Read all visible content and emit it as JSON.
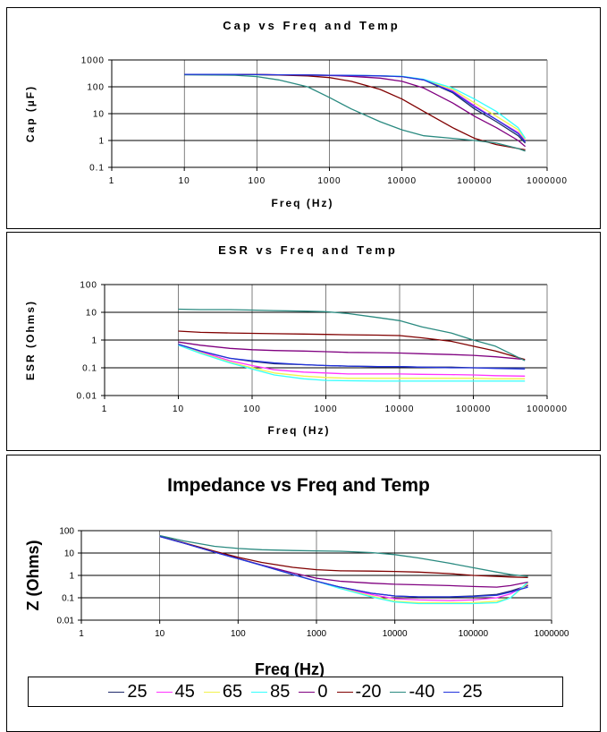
{
  "series_style": [
    {
      "name": "25",
      "color": "#1f2a6b"
    },
    {
      "name": "45",
      "color": "#ff33ff"
    },
    {
      "name": "65",
      "color": "#f2f24d"
    },
    {
      "name": "85",
      "color": "#33ffff"
    },
    {
      "name": "0",
      "color": "#800080"
    },
    {
      "name": "-20",
      "color": "#800000"
    },
    {
      "name": "-40",
      "color": "#2a8a80"
    },
    {
      "name": "25",
      "color": "#2233dd"
    }
  ],
  "chart_data": [
    {
      "type": "line",
      "title": "Cap vs Freq and Temp",
      "xlabel": "Freq (Hz)",
      "ylabel": "Cap (µF)",
      "xscale": "log",
      "yscale": "log",
      "xlim": [
        1,
        1000000
      ],
      "ylim": [
        0.1,
        1000
      ],
      "xticks": [
        "1",
        "10",
        "100",
        "1000",
        "10000",
        "100000",
        "1000000"
      ],
      "yticks": [
        "0.1",
        "1",
        "10",
        "100",
        "1000"
      ],
      "grid": "horizontal",
      "x": [
        10,
        50,
        100,
        200,
        500,
        1000,
        2000,
        5000,
        10000,
        20000,
        50000,
        100000,
        200000,
        400000,
        500000
      ],
      "series": [
        {
          "name": "25",
          "values": [
            290,
            290,
            285,
            280,
            275,
            270,
            265,
            255,
            240,
            180,
            60,
            15,
            5,
            1.5,
            0.8
          ]
        },
        {
          "name": "45",
          "values": [
            290,
            290,
            285,
            280,
            275,
            270,
            265,
            255,
            240,
            180,
            70,
            20,
            6,
            2,
            1
          ]
        },
        {
          "name": "65",
          "values": [
            285,
            285,
            280,
            280,
            275,
            270,
            265,
            255,
            240,
            185,
            80,
            25,
            8,
            2.5,
            1.1
          ]
        },
        {
          "name": "85",
          "values": [
            285,
            285,
            280,
            278,
            275,
            270,
            268,
            260,
            245,
            190,
            90,
            35,
            12,
            3,
            1.2
          ]
        },
        {
          "name": "0",
          "values": [
            290,
            290,
            285,
            280,
            275,
            265,
            245,
            210,
            160,
            90,
            25,
            8,
            3,
            1,
            0.6
          ]
        },
        {
          "name": "-20",
          "values": [
            290,
            288,
            285,
            275,
            255,
            220,
            160,
            80,
            35,
            12,
            3,
            1.2,
            0.7,
            0.5,
            0.45
          ]
        },
        {
          "name": "-40",
          "values": [
            280,
            270,
            240,
            180,
            100,
            40,
            15,
            5,
            2.5,
            1.5,
            1.2,
            1,
            0.8,
            0.5,
            0.4
          ]
        },
        {
          "name": "25",
          "values": [
            290,
            290,
            285,
            280,
            275,
            270,
            265,
            255,
            240,
            180,
            65,
            18,
            6,
            1.8,
            0.9
          ]
        }
      ]
    },
    {
      "type": "line",
      "title": "ESR vs Freq and Temp",
      "xlabel": "Freq (Hz)",
      "ylabel": "ESR (Ohms)",
      "xscale": "log",
      "yscale": "log",
      "xlim": [
        1,
        1000000
      ],
      "ylim": [
        0.01,
        100
      ],
      "xticks": [
        "1",
        "10",
        "100",
        "1000",
        "10000",
        "100000",
        "1000000"
      ],
      "yticks": [
        "0.01",
        "0.1",
        "1",
        "10",
        "100"
      ],
      "grid": "horizontal",
      "x": [
        10,
        20,
        50,
        100,
        200,
        500,
        1000,
        2000,
        5000,
        10000,
        20000,
        50000,
        100000,
        200000,
        500000
      ],
      "series": [
        {
          "name": "25",
          "values": [
            0.7,
            0.4,
            0.22,
            0.17,
            0.14,
            0.13,
            0.12,
            0.115,
            0.11,
            0.11,
            0.105,
            0.105,
            0.1,
            0.1,
            0.1
          ]
        },
        {
          "name": "45",
          "values": [
            0.7,
            0.38,
            0.18,
            0.12,
            0.085,
            0.07,
            0.065,
            0.06,
            0.06,
            0.06,
            0.058,
            0.057,
            0.055,
            0.052,
            0.05
          ]
        },
        {
          "name": "65",
          "values": [
            0.65,
            0.35,
            0.16,
            0.1,
            0.065,
            0.05,
            0.045,
            0.042,
            0.042,
            0.042,
            0.042,
            0.042,
            0.042,
            0.04,
            0.04
          ]
        },
        {
          "name": "85",
          "values": [
            0.65,
            0.33,
            0.15,
            0.09,
            0.055,
            0.04,
            0.035,
            0.034,
            0.033,
            0.033,
            0.033,
            0.033,
            0.033,
            0.033,
            0.033
          ]
        },
        {
          "name": "0",
          "values": [
            0.85,
            0.65,
            0.5,
            0.45,
            0.42,
            0.4,
            0.38,
            0.36,
            0.35,
            0.34,
            0.32,
            0.3,
            0.28,
            0.25,
            0.2
          ]
        },
        {
          "name": "-20",
          "values": [
            2.1,
            1.9,
            1.8,
            1.75,
            1.7,
            1.65,
            1.6,
            1.55,
            1.5,
            1.45,
            1.2,
            0.9,
            0.6,
            0.4,
            0.2
          ]
        },
        {
          "name": "-40",
          "values": [
            13,
            12.5,
            12.5,
            12,
            11.5,
            11,
            10.5,
            9,
            6.5,
            5,
            3,
            1.8,
            1,
            0.6,
            0.18
          ]
        },
        {
          "name": "25",
          "values": [
            0.7,
            0.4,
            0.22,
            0.18,
            0.15,
            0.13,
            0.12,
            0.115,
            0.11,
            0.11,
            0.105,
            0.1,
            0.1,
            0.095,
            0.09
          ]
        }
      ]
    },
    {
      "type": "line",
      "title": "Impedance vs Freq and Temp",
      "xlabel": "Freq (Hz)",
      "ylabel": "Z (Ohms)",
      "xscale": "log",
      "yscale": "log",
      "xlim": [
        1,
        1000000
      ],
      "ylim": [
        0.01,
        100
      ],
      "xticks": [
        "1",
        "10",
        "100",
        "1000",
        "10000",
        "100000",
        "1000000"
      ],
      "yticks": [
        "0.01",
        "0.1",
        "1",
        "10",
        "100"
      ],
      "grid": "horizontal",
      "x": [
        10,
        20,
        50,
        100,
        200,
        500,
        1000,
        2000,
        5000,
        10000,
        20000,
        50000,
        100000,
        200000,
        300000,
        500000
      ],
      "series": [
        {
          "name": "25",
          "values": [
            55,
            28,
            11,
            5.6,
            2.8,
            1.1,
            0.55,
            0.3,
            0.16,
            0.12,
            0.11,
            0.11,
            0.12,
            0.14,
            0.2,
            0.35
          ]
        },
        {
          "name": "45",
          "values": [
            55,
            28,
            11,
            5.6,
            2.8,
            1.1,
            0.55,
            0.28,
            0.14,
            0.09,
            0.08,
            0.075,
            0.08,
            0.1,
            0.15,
            0.4
          ]
        },
        {
          "name": "65",
          "values": [
            55,
            28,
            11,
            5.6,
            2.8,
            1.1,
            0.55,
            0.27,
            0.12,
            0.07,
            0.06,
            0.06,
            0.06,
            0.07,
            0.1,
            0.45
          ]
        },
        {
          "name": "85",
          "values": [
            55,
            28,
            11,
            5.6,
            2.8,
            1.1,
            0.55,
            0.26,
            0.11,
            0.065,
            0.055,
            0.055,
            0.055,
            0.06,
            0.1,
            0.5
          ]
        },
        {
          "name": "0",
          "values": [
            55,
            28,
            11,
            5.7,
            2.9,
            1.3,
            0.75,
            0.55,
            0.45,
            0.4,
            0.38,
            0.35,
            0.32,
            0.3,
            0.35,
            0.5
          ]
        },
        {
          "name": "-20",
          "values": [
            56,
            29,
            12,
            6.5,
            3.8,
            2.3,
            1.8,
            1.6,
            1.55,
            1.5,
            1.4,
            1.2,
            1,
            0.9,
            0.85,
            0.8
          ]
        },
        {
          "name": "-40",
          "values": [
            60,
            35,
            20,
            16,
            14,
            13,
            12.5,
            12,
            10.5,
            8.5,
            6,
            3.5,
            2.2,
            1.4,
            1.1,
            0.9
          ]
        },
        {
          "name": "25",
          "values": [
            55,
            28,
            11,
            5.6,
            2.8,
            1.1,
            0.55,
            0.3,
            0.16,
            0.12,
            0.11,
            0.11,
            0.115,
            0.13,
            0.18,
            0.3
          ]
        }
      ]
    }
  ]
}
